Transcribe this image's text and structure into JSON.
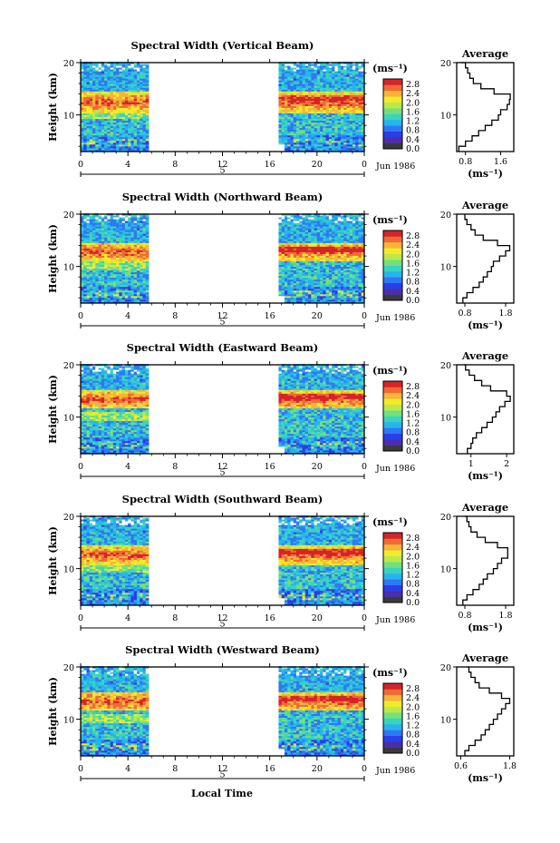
{
  "figure": {
    "xlabel": "Local Time",
    "date_label": "Jun 1986",
    "day_label": "5",
    "units_label": "(ms⁻¹)",
    "colorbar_ticks": [
      "2.8",
      "2.4",
      "2.0",
      "1.6",
      "1.2",
      "0.8",
      "0.4",
      "0.0"
    ],
    "colorbar_colors": [
      "#3a3a3a",
      "#4b2ea8",
      "#2a3ee8",
      "#2f78f5",
      "#27b4ee",
      "#3ad3c0",
      "#72e07e",
      "#bce84c",
      "#f2ea2a",
      "#f5b43a",
      "#ef6b35",
      "#d7232a"
    ],
    "missing_color": "#ffffff"
  },
  "chart_data": [
    {
      "type": "heatmap",
      "title": "Spectral Width (Vertical Beam)",
      "ylabel": "Height (km)",
      "xlim": [
        0,
        24
      ],
      "ylim": [
        3,
        20
      ],
      "x_ticks": [
        "0",
        "4",
        "8",
        "12",
        "16",
        "20",
        "0"
      ],
      "y_ticks": [
        "20",
        "10"
      ],
      "data_gap_hours": [
        5.8,
        16.6
      ],
      "color_range": [
        0.0,
        2.8
      ],
      "high_width_layer_km": [
        10.5,
        14
      ],
      "profile": {
        "title": "Average",
        "xlabel": "(ms⁻¹)",
        "x_ticks": [
          "0.8",
          "1.6"
        ],
        "xlim": [
          0.6,
          1.9
        ],
        "y_ticks": [
          "20",
          "10"
        ],
        "height_km": [
          3,
          4,
          5,
          6,
          7,
          8,
          9,
          10,
          11,
          12,
          13,
          14,
          15,
          16,
          17,
          18,
          19,
          20
        ],
        "width_ms": [
          0.65,
          0.8,
          0.95,
          1.1,
          1.25,
          1.4,
          1.55,
          1.6,
          1.75,
          1.8,
          1.82,
          1.45,
          1.15,
          0.98,
          0.9,
          0.85,
          0.8,
          0.7
        ]
      }
    },
    {
      "type": "heatmap",
      "title": "Spectral Width (Northward Beam)",
      "ylabel": "Height (km)",
      "xlim": [
        0,
        24
      ],
      "ylim": [
        3,
        20
      ],
      "x_ticks": [
        "0",
        "4",
        "8",
        "12",
        "16",
        "20",
        "0"
      ],
      "y_ticks": [
        "20",
        "10"
      ],
      "data_gap_hours": [
        5.8,
        16.6
      ],
      "color_range": [
        0.0,
        2.8
      ],
      "high_width_layer_km": [
        11.5,
        14
      ],
      "profile": {
        "title": "Average",
        "xlabel": "(ms⁻¹)",
        "x_ticks": [
          "0.8",
          "1.8"
        ],
        "xlim": [
          0.6,
          2.0
        ],
        "y_ticks": [
          "20",
          "10"
        ],
        "height_km": [
          3,
          4,
          5,
          6,
          7,
          8,
          9,
          10,
          11,
          12,
          13,
          14,
          15,
          16,
          17,
          18,
          19,
          20
        ],
        "width_ms": [
          0.75,
          0.85,
          1.0,
          1.15,
          1.25,
          1.35,
          1.45,
          1.5,
          1.65,
          1.8,
          1.9,
          1.6,
          1.25,
          1.05,
          0.95,
          0.85,
          0.8,
          0.8
        ]
      }
    },
    {
      "type": "heatmap",
      "title": "Spectral Width (Eastward Beam)",
      "ylabel": "Height (km)",
      "xlim": [
        0,
        24
      ],
      "ylim": [
        3,
        20
      ],
      "x_ticks": [
        "0",
        "4",
        "8",
        "12",
        "16",
        "20",
        "0"
      ],
      "y_ticks": [
        "20",
        "10"
      ],
      "data_gap_hours": [
        5.8,
        16.6
      ],
      "color_range": [
        0.0,
        2.8
      ],
      "high_width_layer_km": [
        12,
        14.5
      ],
      "profile": {
        "title": "Average",
        "xlabel": "(ms⁻¹)",
        "x_ticks": [
          "1",
          "2"
        ],
        "xlim": [
          0.6,
          2.2
        ],
        "y_ticks": [
          "20",
          "10"
        ],
        "height_km": [
          3,
          4,
          5,
          6,
          7,
          8,
          9,
          10,
          11,
          12,
          13,
          14,
          15,
          16,
          17,
          18,
          19,
          20
        ],
        "width_ms": [
          0.9,
          1.0,
          1.05,
          1.15,
          1.3,
          1.45,
          1.6,
          1.7,
          1.8,
          1.95,
          2.1,
          2.0,
          1.55,
          1.3,
          1.1,
          0.95,
          0.85,
          0.8
        ]
      }
    },
    {
      "type": "heatmap",
      "title": "Spectral Width (Southward Beam)",
      "ylabel": "Height (km)",
      "xlim": [
        0,
        24
      ],
      "ylim": [
        3,
        20
      ],
      "x_ticks": [
        "0",
        "4",
        "8",
        "12",
        "16",
        "20",
        "0"
      ],
      "y_ticks": [
        "20",
        "10"
      ],
      "data_gap_hours": [
        5.8,
        16.6
      ],
      "color_range": [
        0.0,
        2.8
      ],
      "high_width_layer_km": [
        11,
        14
      ],
      "profile": {
        "title": "Average",
        "xlabel": "(ms⁻¹)",
        "x_ticks": [
          "0.8",
          "1.8"
        ],
        "xlim": [
          0.6,
          2.0
        ],
        "y_ticks": [
          "20",
          "10"
        ],
        "height_km": [
          3,
          4,
          5,
          6,
          7,
          8,
          9,
          10,
          11,
          12,
          13,
          14,
          15,
          16,
          17,
          18,
          19,
          20
        ],
        "width_ms": [
          0.75,
          0.85,
          1.0,
          1.15,
          1.25,
          1.35,
          1.5,
          1.6,
          1.7,
          1.85,
          1.85,
          1.6,
          1.3,
          1.1,
          0.95,
          0.9,
          0.85,
          0.8
        ]
      }
    },
    {
      "type": "heatmap",
      "title": "Spectral Width (Westward Beam)",
      "ylabel": "Height (km)",
      "xlim": [
        0,
        24
      ],
      "ylim": [
        3,
        20
      ],
      "x_ticks": [
        "0",
        "4",
        "8",
        "12",
        "16",
        "20",
        "0"
      ],
      "y_ticks": [
        "20",
        "10"
      ],
      "data_gap_hours": [
        5.8,
        16.6
      ],
      "color_range": [
        0.0,
        2.8
      ],
      "high_width_layer_km": [
        12,
        14.5
      ],
      "profile": {
        "title": "Average",
        "xlabel": "(ms⁻¹)",
        "x_ticks": [
          "0.6",
          "1.8"
        ],
        "xlim": [
          0.5,
          1.9
        ],
        "y_ticks": [
          "20",
          "10"
        ],
        "height_km": [
          3,
          4,
          5,
          6,
          7,
          8,
          9,
          10,
          11,
          12,
          13,
          14,
          15,
          16,
          17,
          18,
          19,
          20
        ],
        "width_ms": [
          0.7,
          0.8,
          0.95,
          1.1,
          1.2,
          1.3,
          1.4,
          1.5,
          1.6,
          1.7,
          1.8,
          1.6,
          1.3,
          1.05,
          0.95,
          0.85,
          0.8,
          0.75
        ]
      }
    }
  ]
}
